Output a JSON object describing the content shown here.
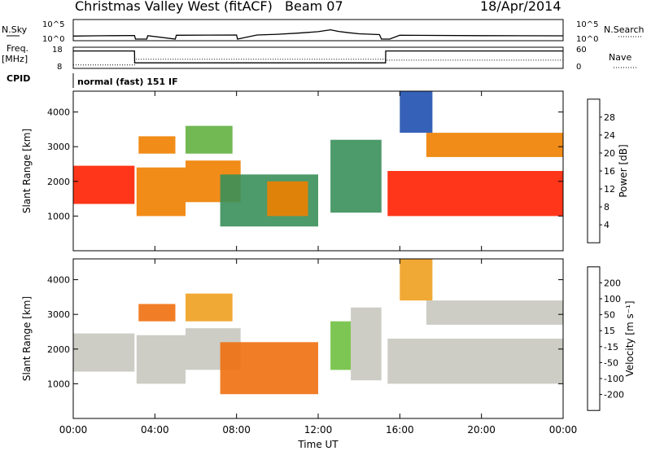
{
  "header": {
    "title": "Christmas Valley West (fitACF)",
    "beam": "Beam 07",
    "date": "18/Apr/2014"
  },
  "panels": {
    "nsky": {
      "label": "N.Sky",
      "right_label": "N.Search"
    },
    "freq": {
      "label_line1": "Freq.",
      "label_line2": "[MHz]",
      "right_label": "Nave"
    },
    "cpid": {
      "label": "CPID",
      "value": "normal (fast) 151 IF"
    }
  },
  "chart_data": [
    {
      "type": "line",
      "name": "noise-panel",
      "ylim": [
        1,
        100000
      ],
      "log_scale": true,
      "left_ticks": [
        "10^5",
        "10^0"
      ],
      "right_ticks": [
        "10^5",
        "10^0"
      ],
      "series": [
        {
          "name": "N.Sky",
          "x": [
            0,
            1,
            2,
            3,
            3.05,
            3.6,
            3.65,
            5,
            5.05,
            8,
            8.05,
            9,
            10,
            11,
            12,
            12.6,
            13,
            13.5,
            14,
            15,
            15.1,
            15.5,
            16,
            20,
            24
          ],
          "values": [
            7,
            8,
            9,
            10,
            1,
            1,
            9,
            1,
            12,
            14,
            1,
            14,
            22,
            45,
            120,
            400,
            140,
            60,
            30,
            18,
            1,
            1,
            12,
            9,
            8
          ]
        }
      ]
    },
    {
      "type": "line",
      "name": "freq-panel",
      "ylim": [
        8,
        18
      ],
      "left_ticks": [
        "18",
        "8"
      ],
      "right_ticks": [
        "60",
        "0"
      ],
      "series": [
        {
          "name": "Freq.",
          "x": [
            0,
            3,
            3.01,
            15.3,
            15.31,
            24
          ],
          "values": [
            16.8,
            16.8,
            10.2,
            10.2,
            16.8,
            16.8
          ]
        },
        {
          "name": "Nave",
          "x": [
            0,
            3,
            3.01,
            15.3,
            15.31,
            24
          ],
          "values": [
            6,
            6,
            25,
            25,
            22,
            22
          ]
        }
      ]
    },
    {
      "type": "heatmap",
      "name": "power-panel",
      "xlabel": "",
      "ylabel": "Slant Range [km]",
      "xlim": [
        0,
        24
      ],
      "ylim": [
        0,
        4600
      ],
      "y_ticks": [
        "1000",
        "2000",
        "3000",
        "4000"
      ],
      "colorbar": {
        "label": "Power [dB]",
        "ticks": [
          "4",
          "8",
          "12",
          "16",
          "20",
          "24",
          "28"
        ],
        "colors": [
          "#0000dd",
          "#2050b0",
          "#3a8f5a",
          "#63b040",
          "#f0c000",
          "#f08000",
          "#ff2000"
        ]
      },
      "regions": [
        {
          "x0": 0.0,
          "x1": 3.0,
          "r0": 1350,
          "r1": 2450,
          "value": 26
        },
        {
          "x0": 3.1,
          "x1": 5.5,
          "r0": 1000,
          "r1": 2400,
          "value": 25
        },
        {
          "x0": 3.2,
          "x1": 5.0,
          "r0": 2800,
          "r1": 3300,
          "value": 24
        },
        {
          "x0": 5.5,
          "x1": 8.2,
          "r0": 1400,
          "r1": 2600,
          "value": 22
        },
        {
          "x0": 5.5,
          "x1": 7.8,
          "r0": 2800,
          "r1": 3600,
          "value": 14
        },
        {
          "x0": 7.2,
          "x1": 12.0,
          "r0": 700,
          "r1": 2200,
          "value": 12
        },
        {
          "x0": 9.5,
          "x1": 11.5,
          "r0": 1000,
          "r1": 2000,
          "value": 22
        },
        {
          "x0": 12.6,
          "x1": 15.1,
          "r0": 1100,
          "r1": 3200,
          "value": 10
        },
        {
          "x0": 15.4,
          "x1": 24.0,
          "r0": 1000,
          "r1": 2300,
          "value": 27
        },
        {
          "x0": 17.3,
          "x1": 24.0,
          "r0": 2700,
          "r1": 3400,
          "value": 24
        },
        {
          "x0": 16.0,
          "x1": 17.6,
          "r0": 3400,
          "r1": 4600,
          "value": 6
        }
      ]
    },
    {
      "type": "heatmap",
      "name": "velocity-panel",
      "xlabel": "Time UT",
      "ylabel": "Slant Range [km]",
      "xlim": [
        0,
        24
      ],
      "ylim": [
        0,
        4600
      ],
      "x_ticks": [
        "00:00",
        "04:00",
        "08:00",
        "12:00",
        "16:00",
        "20:00",
        "00:00"
      ],
      "y_ticks": [
        "1000",
        "2000",
        "3000",
        "4000"
      ],
      "colorbar": {
        "label": "Velocity [m s⁻¹]",
        "ticks": [
          "200",
          "100",
          "50",
          "15",
          "-15",
          "-50",
          "-100",
          "-200"
        ],
        "colors": [
          "#2a3ab0",
          "#2a7a4a",
          "#70c040",
          "#c8c8c0",
          "#f0a020",
          "#f07010",
          "#ff2000"
        ]
      },
      "regions": [
        {
          "x0": 0.0,
          "x1": 3.0,
          "r0": 1350,
          "r1": 2450,
          "value": 0
        },
        {
          "x0": 3.1,
          "x1": 5.5,
          "r0": 1000,
          "r1": 2400,
          "value": 0
        },
        {
          "x0": 3.2,
          "x1": 5.0,
          "r0": 2800,
          "r1": 3300,
          "value": -40
        },
        {
          "x0": 5.5,
          "x1": 8.2,
          "r0": 1400,
          "r1": 2600,
          "value": 0
        },
        {
          "x0": 5.5,
          "x1": 7.8,
          "r0": 2800,
          "r1": 3600,
          "value": -30
        },
        {
          "x0": 7.2,
          "x1": 12.0,
          "r0": 700,
          "r1": 2200,
          "value": -40
        },
        {
          "x0": 12.6,
          "x1": 13.6,
          "r0": 1400,
          "r1": 2800,
          "value": 40
        },
        {
          "x0": 13.6,
          "x1": 15.1,
          "r0": 1100,
          "r1": 3200,
          "value": 0
        },
        {
          "x0": 15.4,
          "x1": 24.0,
          "r0": 1000,
          "r1": 2300,
          "value": 0
        },
        {
          "x0": 17.3,
          "x1": 24.0,
          "r0": 2700,
          "r1": 3400,
          "value": 0
        },
        {
          "x0": 16.0,
          "x1": 17.6,
          "r0": 3400,
          "r1": 4600,
          "value": -30
        }
      ]
    }
  ]
}
